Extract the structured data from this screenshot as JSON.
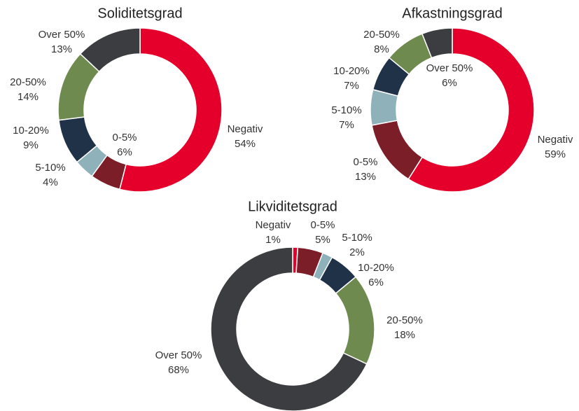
{
  "chart_data": [
    {
      "type": "donut",
      "title": "Soliditetsgrad",
      "categories": [
        "Negativ",
        "0-5%",
        "5-10%",
        "10-20%",
        "20-50%",
        "Over 50%"
      ],
      "values": [
        54,
        6,
        4,
        9,
        14,
        13
      ],
      "value_labels": [
        "54%",
        "6%",
        "4%",
        "9%",
        "14%",
        "13%"
      ],
      "colors": [
        "#e4002b",
        "#7b1e28",
        "#8fb1ba",
        "#1f3247",
        "#6f8a4e",
        "#3b3d40"
      ]
    },
    {
      "type": "donut",
      "title": "Afkastningsgrad",
      "categories": [
        "Negativ",
        "0-5%",
        "5-10%",
        "10-20%",
        "20-50%",
        "Over 50%"
      ],
      "values": [
        59,
        13,
        7,
        7,
        8,
        6
      ],
      "value_labels": [
        "59%",
        "13%",
        "7%",
        "7%",
        "8%",
        "6%"
      ],
      "colors": [
        "#e4002b",
        "#7b1e28",
        "#8fb1ba",
        "#1f3247",
        "#6f8a4e",
        "#3b3d40"
      ]
    },
    {
      "type": "donut",
      "title": "Likviditetsgrad",
      "categories": [
        "Negativ",
        "0-5%",
        "5-10%",
        "10-20%",
        "20-50%",
        "Over 50%"
      ],
      "values": [
        1,
        5,
        2,
        6,
        18,
        68
      ],
      "value_labels": [
        "1%",
        "5%",
        "2%",
        "6%",
        "18%",
        "68%"
      ],
      "colors": [
        "#e4002b",
        "#7b1e28",
        "#8fb1ba",
        "#1f3247",
        "#6f8a4e",
        "#3b3d40"
      ]
    }
  ]
}
